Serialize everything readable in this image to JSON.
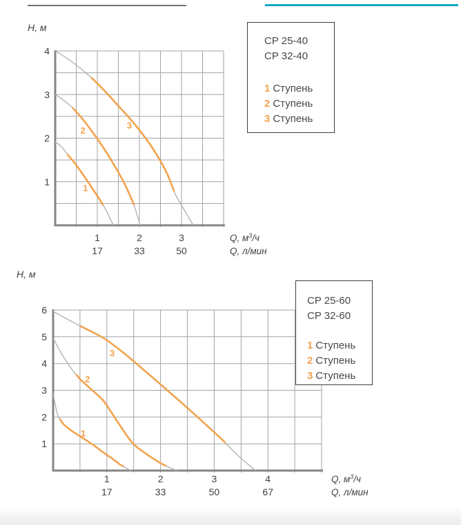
{
  "decor": {
    "top_left_rule_color": "#6f7170",
    "top_right_rule_color": "#0ba9c2"
  },
  "colors": {
    "orange": "#f2a24d",
    "gray_curve": "#b3b3b3",
    "grid": "#a3a3a3",
    "axis": "#858585",
    "text": "#3e4145"
  },
  "chart_data": [
    {
      "type": "line",
      "name": "pump-curves-cp-25-40-cp-32-40",
      "y_axis": {
        "title": "H, м",
        "ticks": [
          "4",
          "3",
          "2",
          "1"
        ],
        "range": [
          0,
          4
        ],
        "grid_step": 0.5
      },
      "x_axis": {
        "ticks_m3h": [
          "1",
          "2",
          "3"
        ],
        "ticks_lmin": [
          "17",
          "33",
          "50"
        ],
        "range": [
          0,
          4
        ],
        "grid_step": 0.5,
        "unit_primary": {
          "pre": "Q, м",
          "sup": "3",
          "post": "/ч"
        },
        "unit_secondary": "Q, л/мин"
      },
      "legend": {
        "models": [
          "CP 25-40",
          "CP 32-40"
        ],
        "stages": [
          {
            "num": "1",
            "label": "Ступень"
          },
          {
            "num": "2",
            "label": "Ступень"
          },
          {
            "num": "3",
            "label": "Ступень"
          }
        ]
      },
      "series": [
        {
          "stage": "1",
          "points": [
            [
              0,
              1.92
            ],
            [
              0.15,
              1.8
            ],
            [
              0.3,
              1.62
            ],
            [
              0.5,
              1.38
            ],
            [
              0.72,
              1.08
            ],
            [
              0.9,
              0.82
            ],
            [
              1.05,
              0.6
            ],
            [
              1.2,
              0.36
            ],
            [
              1.38,
              0
            ]
          ],
          "orange_range": [
            0.3,
            1.13
          ],
          "label_pos": [
            0.72,
            0.78
          ]
        },
        {
          "stage": "2",
          "points": [
            [
              0,
              3.0
            ],
            [
              0.2,
              2.87
            ],
            [
              0.45,
              2.66
            ],
            [
              0.7,
              2.38
            ],
            [
              0.95,
              2.05
            ],
            [
              1.2,
              1.7
            ],
            [
              1.45,
              1.3
            ],
            [
              1.65,
              0.95
            ],
            [
              1.85,
              0.52
            ],
            [
              2.02,
              0
            ]
          ],
          "orange_range": [
            0.42,
            1.86
          ],
          "label_pos": [
            0.66,
            2.1
          ]
        },
        {
          "stage": "3",
          "points": [
            [
              0,
              4.0
            ],
            [
              0.3,
              3.82
            ],
            [
              0.6,
              3.6
            ],
            [
              0.9,
              3.35
            ],
            [
              1.2,
              3.06
            ],
            [
              1.5,
              2.74
            ],
            [
              1.8,
              2.42
            ],
            [
              2.1,
              2.06
            ],
            [
              2.4,
              1.64
            ],
            [
              2.65,
              1.2
            ],
            [
              2.85,
              0.72
            ],
            [
              3.05,
              0.38
            ],
            [
              3.28,
              0
            ]
          ],
          "orange_range": [
            0.88,
            2.82
          ],
          "label_pos": [
            1.76,
            2.22
          ]
        }
      ]
    },
    {
      "type": "line",
      "name": "pump-curves-cp-25-60-cp-32-60",
      "y_axis": {
        "title": "H, м",
        "ticks": [
          "6",
          "5",
          "4",
          "3",
          "2",
          "1"
        ],
        "range": [
          0,
          6
        ],
        "grid_step": 1
      },
      "x_axis": {
        "ticks_m3h": [
          "1",
          "2",
          "3",
          "4"
        ],
        "ticks_lmin": [
          "17",
          "33",
          "50",
          "67"
        ],
        "range": [
          0,
          5
        ],
        "grid_step": 0.5,
        "unit_primary": {
          "pre": "Q, м",
          "sup": "3",
          "post": "/ч"
        },
        "unit_secondary": "Q, л/мин"
      },
      "legend": {
        "models": [
          "CP 25-60",
          "CP 32-60"
        ],
        "stages": [
          {
            "num": "1",
            "label": "Ступень"
          },
          {
            "num": "2",
            "label": "Ступень"
          },
          {
            "num": "3",
            "label": "Ступень"
          }
        ]
      },
      "series": [
        {
          "stage": "1",
          "points": [
            [
              0,
              2.9
            ],
            [
              0.04,
              2.45
            ],
            [
              0.1,
              2.0
            ],
            [
              0.2,
              1.72
            ],
            [
              0.35,
              1.48
            ],
            [
              0.55,
              1.22
            ],
            [
              0.75,
              0.95
            ],
            [
              0.95,
              0.66
            ],
            [
              1.1,
              0.45
            ],
            [
              1.25,
              0.22
            ],
            [
              1.45,
              0
            ]
          ],
          "orange_range": [
            0.13,
            1.3
          ],
          "label_pos": [
            0.56,
            1.28
          ]
        },
        {
          "stage": "2",
          "points": [
            [
              0,
              4.95
            ],
            [
              0.12,
              4.5
            ],
            [
              0.3,
              3.92
            ],
            [
              0.5,
              3.42
            ],
            [
              0.7,
              3.05
            ],
            [
              0.94,
              2.6
            ],
            [
              1.2,
              1.82
            ],
            [
              1.48,
              1.03
            ],
            [
              1.75,
              0.6
            ],
            [
              2.0,
              0.28
            ],
            [
              2.15,
              0.13
            ],
            [
              2.3,
              0
            ]
          ],
          "orange_range": [
            0.44,
            2.1
          ],
          "label_pos": [
            0.64,
            3.3
          ]
        },
        {
          "stage": "3",
          "points": [
            [
              0,
              5.95
            ],
            [
              0.3,
              5.62
            ],
            [
              0.55,
              5.36
            ],
            [
              0.94,
              4.95
            ],
            [
              1.3,
              4.42
            ],
            [
              1.7,
              3.74
            ],
            [
              2.03,
              3.17
            ],
            [
              2.4,
              2.52
            ],
            [
              2.8,
              1.8
            ],
            [
              3.15,
              1.15
            ],
            [
              3.45,
              0.55
            ],
            [
              3.77,
              0
            ]
          ],
          "orange_range": [
            0.53,
            3.2
          ],
          "label_pos": [
            1.1,
            4.28
          ]
        }
      ]
    }
  ]
}
